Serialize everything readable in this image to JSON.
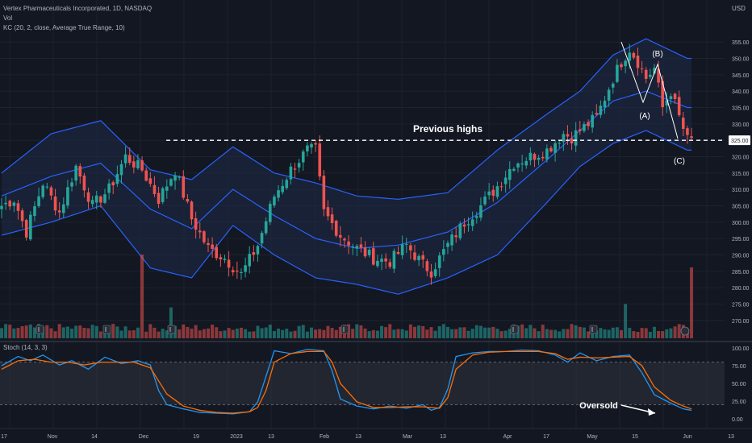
{
  "header": {
    "title_line": "Vertex Pharmaceuticals Incorporated, 1D, NASDAQ",
    "vol_label": "Vol",
    "kc_label": "KC (20, 2, close, Average True Range, 10)",
    "stoch_label": "Stoch (14, 3, 3)",
    "currency": "USD"
  },
  "annotations": {
    "previous_highs": "Previous highs",
    "wave_a": "(A)",
    "wave_b": "(B)",
    "wave_c": "(C)",
    "oversold": "Oversold",
    "price_tag": "325.00"
  },
  "colors": {
    "background": "#131722",
    "up": "#26a69a",
    "down": "#ef5350",
    "kc_line": "#2962ff",
    "kc_fill": "#1e2a45",
    "stoch_k": "#2196f3",
    "stoch_d": "#ff6d00",
    "text": "#b2b5be"
  },
  "chart_data": [
    {
      "type": "line",
      "title": "Vertex Pharmaceuticals Incorporated, 1D, NASDAQ",
      "series_names": [
        "Price (candlestick)",
        "KC upper",
        "KC middle",
        "KC lower",
        "Volume"
      ],
      "price_axis": {
        "unit": "USD",
        "ylim": [
          267,
          358
        ],
        "ticks": [
          "355.00",
          "350.00",
          "345.00",
          "340.00",
          "335.00",
          "330.00",
          "325.00",
          "320.00",
          "315.00",
          "310.00",
          "305.00",
          "300.00",
          "295.00",
          "290.00",
          "285.00",
          "280.00",
          "275.00",
          "270.00"
        ]
      },
      "x_axis_ticks": [
        "17",
        "Nov",
        "14",
        "Dec",
        "19",
        "2023",
        "13",
        "Feb",
        "13",
        "Mar",
        "13",
        "Apr",
        "17",
        "May",
        "15",
        "Jun",
        "13"
      ],
      "price_path": [
        [
          0,
          305
        ],
        [
          3,
          307
        ],
        [
          6,
          297
        ],
        [
          10,
          312
        ],
        [
          14,
          303
        ],
        [
          18,
          317
        ],
        [
          22,
          305
        ],
        [
          26,
          310
        ],
        [
          30,
          320
        ],
        [
          34,
          316
        ],
        [
          38,
          307
        ],
        [
          42,
          316
        ],
        [
          46,
          301
        ],
        [
          50,
          292
        ],
        [
          54,
          289
        ],
        [
          58,
          284
        ],
        [
          62,
          293
        ],
        [
          66,
          308
        ],
        [
          70,
          316
        ],
        [
          74,
          322
        ],
        [
          76,
          322
        ],
        [
          78,
          303
        ],
        [
          82,
          296
        ],
        [
          86,
          292
        ],
        [
          90,
          289
        ],
        [
          94,
          288
        ],
        [
          98,
          293
        ],
        [
          102,
          287
        ],
        [
          104,
          285
        ],
        [
          108,
          293
        ],
        [
          112,
          300
        ],
        [
          116,
          305
        ],
        [
          120,
          311
        ],
        [
          124,
          318
        ],
        [
          128,
          320
        ],
        [
          132,
          322
        ],
        [
          136,
          327
        ],
        [
          138,
          326
        ],
        [
          140,
          328
        ],
        [
          144,
          332
        ],
        [
          146,
          338
        ],
        [
          148,
          344
        ],
        [
          150,
          349
        ],
        [
          152,
          353
        ],
        [
          154,
          349
        ],
        [
          156,
          344
        ],
        [
          158,
          347
        ],
        [
          160,
          335
        ],
        [
          162,
          340
        ],
        [
          164,
          332
        ],
        [
          166,
          325
        ]
      ],
      "kc_upper": [
        [
          0,
          315
        ],
        [
          12,
          327
        ],
        [
          24,
          331
        ],
        [
          36,
          316
        ],
        [
          46,
          313
        ],
        [
          56,
          323
        ],
        [
          66,
          315
        ],
        [
          76,
          312
        ],
        [
          86,
          308
        ],
        [
          96,
          307
        ],
        [
          108,
          309
        ],
        [
          120,
          322
        ],
        [
          132,
          333
        ],
        [
          140,
          340
        ],
        [
          148,
          351
        ],
        [
          156,
          356
        ],
        [
          166,
          350
        ]
      ],
      "kc_middle": [
        [
          0,
          308
        ],
        [
          12,
          314
        ],
        [
          24,
          318
        ],
        [
          36,
          304
        ],
        [
          46,
          298
        ],
        [
          56,
          310
        ],
        [
          66,
          302
        ],
        [
          76,
          295
        ],
        [
          86,
          292
        ],
        [
          96,
          293
        ],
        [
          108,
          297
        ],
        [
          120,
          306
        ],
        [
          132,
          319
        ],
        [
          140,
          328
        ],
        [
          148,
          337
        ],
        [
          156,
          340
        ],
        [
          166,
          335
        ]
      ],
      "kc_lower": [
        [
          0,
          296
        ],
        [
          12,
          300
        ],
        [
          24,
          305
        ],
        [
          36,
          286
        ],
        [
          46,
          283
        ],
        [
          56,
          299
        ],
        [
          66,
          290
        ],
        [
          76,
          283
        ],
        [
          86,
          281
        ],
        [
          96,
          278
        ],
        [
          108,
          283
        ],
        [
          120,
          290
        ],
        [
          132,
          306
        ],
        [
          140,
          317
        ],
        [
          148,
          324
        ],
        [
          156,
          328
        ],
        [
          166,
          322
        ]
      ],
      "volume_spikes": [
        [
          41,
          "high"
        ],
        [
          151,
          "high"
        ],
        [
          167,
          "very-high"
        ]
      ],
      "reference_line": {
        "value": 325,
        "style": "dashed",
        "label": "Previous highs"
      }
    },
    {
      "type": "line",
      "title": "Stoch (14, 3, 3)",
      "ylim": [
        0,
        100
      ],
      "ticks": [
        "100.00",
        "75.00",
        "50.00",
        "25.00",
        "0.00"
      ],
      "bands": [
        20,
        80
      ],
      "series": [
        {
          "name": "%K",
          "values": [
            [
              0,
              75
            ],
            [
              4,
              88
            ],
            [
              7,
              82
            ],
            [
              10,
              90
            ],
            [
              14,
              76
            ],
            [
              17,
              82
            ],
            [
              21,
              70
            ],
            [
              25,
              87
            ],
            [
              29,
              78
            ],
            [
              33,
              82
            ],
            [
              36,
              76
            ],
            [
              38,
              40
            ],
            [
              40,
              20
            ],
            [
              44,
              14
            ],
            [
              48,
              9
            ],
            [
              52,
              8
            ],
            [
              56,
              7
            ],
            [
              60,
              10
            ],
            [
              62,
              24
            ],
            [
              64,
              60
            ],
            [
              66,
              96
            ],
            [
              70,
              92
            ],
            [
              74,
              98
            ],
            [
              78,
              96
            ],
            [
              80,
              68
            ],
            [
              82,
              28
            ],
            [
              86,
              18
            ],
            [
              90,
              14
            ],
            [
              94,
              18
            ],
            [
              98,
              15
            ],
            [
              102,
              20
            ],
            [
              104,
              12
            ],
            [
              106,
              16
            ],
            [
              108,
              42
            ],
            [
              110,
              88
            ],
            [
              114,
              93
            ],
            [
              118,
              95
            ],
            [
              122,
              95
            ],
            [
              126,
              97
            ],
            [
              130,
              96
            ],
            [
              134,
              90
            ],
            [
              137,
              80
            ],
            [
              140,
              93
            ],
            [
              144,
              82
            ],
            [
              148,
              88
            ],
            [
              152,
              90
            ],
            [
              155,
              65
            ],
            [
              158,
              34
            ],
            [
              162,
              22
            ],
            [
              165,
              14
            ],
            [
              167,
              12
            ]
          ]
        },
        {
          "name": "%D",
          "values": [
            [
              0,
              70
            ],
            [
              4,
              82
            ],
            [
              8,
              84
            ],
            [
              12,
              80
            ],
            [
              16,
              80
            ],
            [
              20,
              76
            ],
            [
              24,
              80
            ],
            [
              28,
              80
            ],
            [
              32,
              80
            ],
            [
              36,
              72
            ],
            [
              40,
              35
            ],
            [
              44,
              18
            ],
            [
              48,
              12
            ],
            [
              52,
              9
            ],
            [
              56,
              8
            ],
            [
              60,
              10
            ],
            [
              62,
              16
            ],
            [
              64,
              40
            ],
            [
              66,
              80
            ],
            [
              70,
              92
            ],
            [
              74,
              95
            ],
            [
              78,
              95
            ],
            [
              80,
              80
            ],
            [
              82,
              50
            ],
            [
              86,
              24
            ],
            [
              90,
              16
            ],
            [
              94,
              16
            ],
            [
              98,
              17
            ],
            [
              102,
              17
            ],
            [
              106,
              15
            ],
            [
              108,
              30
            ],
            [
              110,
              70
            ],
            [
              114,
              90
            ],
            [
              118,
              94
            ],
            [
              122,
              95
            ],
            [
              126,
              95
            ],
            [
              130,
              95
            ],
            [
              134,
              92
            ],
            [
              137,
              84
            ],
            [
              140,
              87
            ],
            [
              144,
              86
            ],
            [
              148,
              87
            ],
            [
              152,
              88
            ],
            [
              155,
              75
            ],
            [
              158,
              45
            ],
            [
              162,
              26
            ],
            [
              165,
              18
            ],
            [
              167,
              14
            ]
          ]
        }
      ]
    }
  ]
}
